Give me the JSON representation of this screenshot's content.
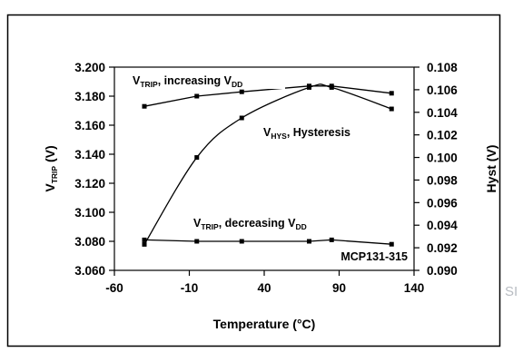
{
  "chart_data": {
    "type": "line",
    "x": [
      -40,
      -5,
      25,
      70,
      85,
      125
    ],
    "xlabel": "Temperature (°C)",
    "x_ticks": [
      "-60",
      "-10",
      "40",
      "90",
      "140"
    ],
    "xlim": [
      -60,
      140
    ],
    "y_left": {
      "label_main": "V",
      "label_sub": "TRIP",
      "label_rest": " (V)",
      "ticks": [
        "3.060",
        "3.080",
        "3.100",
        "3.120",
        "3.140",
        "3.160",
        "3.180",
        "3.200"
      ],
      "lim": [
        3.06,
        3.2
      ]
    },
    "y_right": {
      "label": "Hyst (V)",
      "ticks": [
        "0.090",
        "0.092",
        "0.094",
        "0.096",
        "0.098",
        "0.100",
        "0.102",
        "0.104",
        "0.106",
        "0.108"
      ],
      "lim": [
        0.09,
        0.108
      ]
    },
    "series": [
      {
        "name_main": "V",
        "name_sub": "TRIP",
        "name_rest": ", increasing V",
        "name_sub2": "DD",
        "axis": "left",
        "x": [
          -40,
          -5,
          25,
          70,
          85,
          125
        ],
        "values": [
          3.173,
          3.18,
          3.183,
          3.187,
          3.187,
          3.182
        ]
      },
      {
        "name_main": "V",
        "name_sub": "TRIP",
        "name_rest": ", decreasing V",
        "name_sub2": "DD",
        "axis": "left",
        "x": [
          -40,
          -5,
          25,
          70,
          85,
          125
        ],
        "values": [
          3.081,
          3.08,
          3.08,
          3.08,
          3.081,
          3.078
        ]
      },
      {
        "name_main": "V",
        "name_sub": "HYS",
        "name_rest": ", Hysteresis",
        "name_sub2": "",
        "axis": "right",
        "x": [
          -40,
          -5,
          25,
          70,
          85,
          125
        ],
        "values": [
          0.0923,
          0.1,
          0.1035,
          0.1062,
          0.1062,
          0.1043
        ]
      }
    ],
    "annotation": "MCP131-315",
    "grid": false
  },
  "edge_text": "SI"
}
